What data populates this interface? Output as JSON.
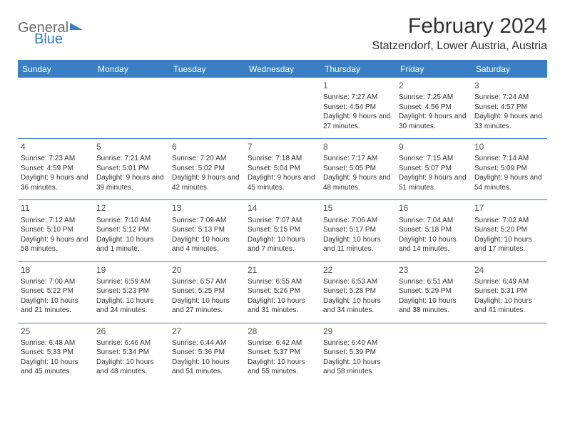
{
  "logo": {
    "general": "General",
    "blue": "Blue"
  },
  "title": {
    "month": "February 2024",
    "location": "Statzendorf, Lower Austria, Austria"
  },
  "colors": {
    "brand": "#3a7fc4",
    "header_text": "#ffffff",
    "body_text": "#333333",
    "logo_gray": "#6b6b6b",
    "background": "#ffffff"
  },
  "calendar": {
    "weekdays": [
      "Sunday",
      "Monday",
      "Tuesday",
      "Wednesday",
      "Thursday",
      "Friday",
      "Saturday"
    ],
    "first_weekday_index": 4,
    "days": [
      {
        "n": 1,
        "sunrise": "7:27 AM",
        "sunset": "4:54 PM",
        "daylight": "9 hours and 27 minutes."
      },
      {
        "n": 2,
        "sunrise": "7:25 AM",
        "sunset": "4:56 PM",
        "daylight": "9 hours and 30 minutes."
      },
      {
        "n": 3,
        "sunrise": "7:24 AM",
        "sunset": "4:57 PM",
        "daylight": "9 hours and 33 minutes."
      },
      {
        "n": 4,
        "sunrise": "7:23 AM",
        "sunset": "4:59 PM",
        "daylight": "9 hours and 36 minutes."
      },
      {
        "n": 5,
        "sunrise": "7:21 AM",
        "sunset": "5:01 PM",
        "daylight": "9 hours and 39 minutes."
      },
      {
        "n": 6,
        "sunrise": "7:20 AM",
        "sunset": "5:02 PM",
        "daylight": "9 hours and 42 minutes."
      },
      {
        "n": 7,
        "sunrise": "7:18 AM",
        "sunset": "5:04 PM",
        "daylight": "9 hours and 45 minutes."
      },
      {
        "n": 8,
        "sunrise": "7:17 AM",
        "sunset": "5:05 PM",
        "daylight": "9 hours and 48 minutes."
      },
      {
        "n": 9,
        "sunrise": "7:15 AM",
        "sunset": "5:07 PM",
        "daylight": "9 hours and 51 minutes."
      },
      {
        "n": 10,
        "sunrise": "7:14 AM",
        "sunset": "5:09 PM",
        "daylight": "9 hours and 54 minutes."
      },
      {
        "n": 11,
        "sunrise": "7:12 AM",
        "sunset": "5:10 PM",
        "daylight": "9 hours and 58 minutes."
      },
      {
        "n": 12,
        "sunrise": "7:10 AM",
        "sunset": "5:12 PM",
        "daylight": "10 hours and 1 minute."
      },
      {
        "n": 13,
        "sunrise": "7:09 AM",
        "sunset": "5:13 PM",
        "daylight": "10 hours and 4 minutes."
      },
      {
        "n": 14,
        "sunrise": "7:07 AM",
        "sunset": "5:15 PM",
        "daylight": "10 hours and 7 minutes."
      },
      {
        "n": 15,
        "sunrise": "7:06 AM",
        "sunset": "5:17 PM",
        "daylight": "10 hours and 11 minutes."
      },
      {
        "n": 16,
        "sunrise": "7:04 AM",
        "sunset": "5:18 PM",
        "daylight": "10 hours and 14 minutes."
      },
      {
        "n": 17,
        "sunrise": "7:02 AM",
        "sunset": "5:20 PM",
        "daylight": "10 hours and 17 minutes."
      },
      {
        "n": 18,
        "sunrise": "7:00 AM",
        "sunset": "5:22 PM",
        "daylight": "10 hours and 21 minutes."
      },
      {
        "n": 19,
        "sunrise": "6:59 AM",
        "sunset": "5:23 PM",
        "daylight": "10 hours and 24 minutes."
      },
      {
        "n": 20,
        "sunrise": "6:57 AM",
        "sunset": "5:25 PM",
        "daylight": "10 hours and 27 minutes."
      },
      {
        "n": 21,
        "sunrise": "6:55 AM",
        "sunset": "5:26 PM",
        "daylight": "10 hours and 31 minutes."
      },
      {
        "n": 22,
        "sunrise": "6:53 AM",
        "sunset": "5:28 PM",
        "daylight": "10 hours and 34 minutes."
      },
      {
        "n": 23,
        "sunrise": "6:51 AM",
        "sunset": "5:29 PM",
        "daylight": "10 hours and 38 minutes."
      },
      {
        "n": 24,
        "sunrise": "6:49 AM",
        "sunset": "5:31 PM",
        "daylight": "10 hours and 41 minutes."
      },
      {
        "n": 25,
        "sunrise": "6:48 AM",
        "sunset": "5:33 PM",
        "daylight": "10 hours and 45 minutes."
      },
      {
        "n": 26,
        "sunrise": "6:46 AM",
        "sunset": "5:34 PM",
        "daylight": "10 hours and 48 minutes."
      },
      {
        "n": 27,
        "sunrise": "6:44 AM",
        "sunset": "5:36 PM",
        "daylight": "10 hours and 51 minutes."
      },
      {
        "n": 28,
        "sunrise": "6:42 AM",
        "sunset": "5:37 PM",
        "daylight": "10 hours and 55 minutes."
      },
      {
        "n": 29,
        "sunrise": "6:40 AM",
        "sunset": "5:39 PM",
        "daylight": "10 hours and 58 minutes."
      }
    ],
    "labels": {
      "sunrise": "Sunrise:",
      "sunset": "Sunset:",
      "daylight": "Daylight:"
    }
  }
}
